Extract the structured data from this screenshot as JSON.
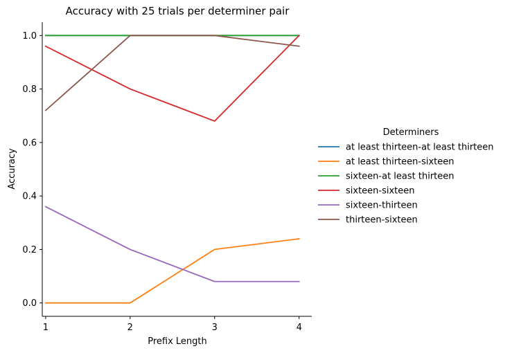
{
  "chart_data": {
    "type": "line",
    "title": "Accuracy with 25 trials per determiner pair",
    "xlabel": "Prefix Length",
    "ylabel": "Accuracy",
    "x": [
      1,
      2,
      3,
      4
    ],
    "x_tick_labels": [
      "1",
      "2",
      "3",
      "4"
    ],
    "xlim": [
      0.96,
      4.15
    ],
    "ylim": [
      -0.05,
      1.05
    ],
    "y_ticks": [
      0.0,
      0.2,
      0.4,
      0.6,
      0.8,
      1.0
    ],
    "y_tick_labels": [
      "0.0",
      "0.2",
      "0.4",
      "0.6",
      "0.8",
      "1.0"
    ],
    "grid": false,
    "legend": {
      "title": "Determiners",
      "placement": "right, outside plot"
    },
    "series": [
      {
        "name": "at least thirteen-at least thirteen",
        "color": "#1f77b4",
        "values": [
          1.0,
          1.0,
          1.0,
          1.0
        ]
      },
      {
        "name": "at least thirteen-sixteen",
        "color": "#ff7f0e",
        "values": [
          0.0,
          0.0,
          0.2,
          0.24
        ]
      },
      {
        "name": "sixteen-at least thirteen",
        "color": "#2ca02c",
        "values": [
          1.0,
          1.0,
          1.0,
          1.0
        ]
      },
      {
        "name": "sixteen-sixteen",
        "color": "#d62728",
        "values": [
          0.96,
          0.8,
          0.68,
          1.0
        ]
      },
      {
        "name": "sixteen-thirteen",
        "color": "#9467bd",
        "values": [
          0.36,
          0.2,
          0.08,
          0.08
        ]
      },
      {
        "name": "thirteen-sixteen",
        "color": "#8c564b",
        "values": [
          0.72,
          1.0,
          1.0,
          0.96
        ]
      }
    ]
  }
}
